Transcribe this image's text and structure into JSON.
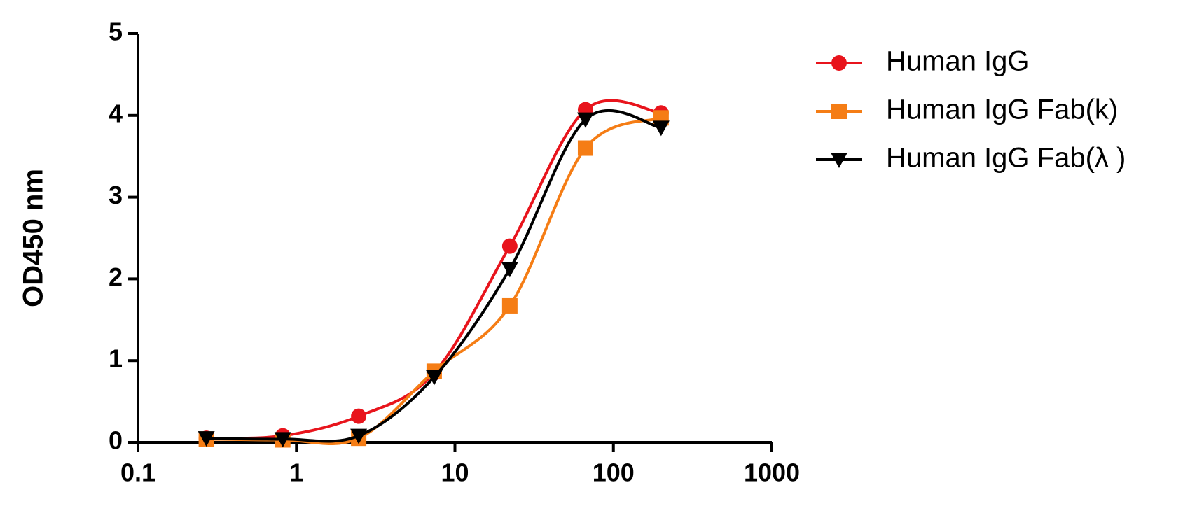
{
  "chart_data": {
    "type": "line",
    "y_label": "OD450 nm",
    "x": [
      0.27,
      0.82,
      2.47,
      7.4,
      22.2,
      66.7,
      200
    ],
    "xscale": "log",
    "xlim": [
      0.1,
      1000
    ],
    "xticks": [
      0.1,
      1,
      10,
      100,
      1000
    ],
    "ylim": [
      0,
      5
    ],
    "yticks": [
      0,
      1,
      2,
      3,
      4,
      5
    ],
    "legend": "upper right",
    "series": [
      {
        "name": "Human IgG",
        "color": "#e8141c",
        "marker": "circle",
        "values": [
          0.05,
          0.08,
          0.32,
          0.85,
          2.4,
          4.07,
          4.03
        ]
      },
      {
        "name": "Human IgG Fab(k)",
        "color": "#f57d15",
        "marker": "square",
        "values": [
          0.04,
          0.03,
          0.05,
          0.87,
          1.67,
          3.6,
          3.97
        ]
      },
      {
        "name": "Human IgG Fab(λ )",
        "color": "#000000",
        "marker": "triangle-down",
        "values": [
          0.05,
          0.04,
          0.08,
          0.8,
          2.12,
          3.95,
          3.85
        ]
      }
    ]
  }
}
